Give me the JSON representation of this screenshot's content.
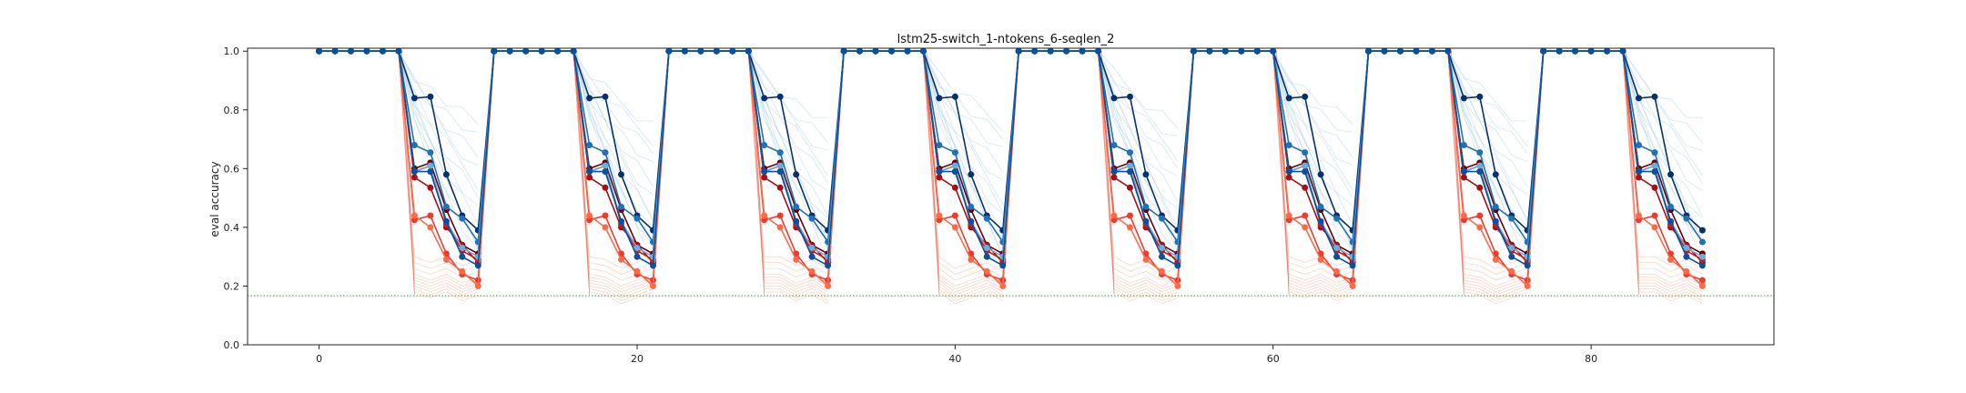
{
  "chart_data": {
    "type": "line",
    "title": "lstm25-switch_1-ntokens_6-seqlen_2",
    "xlabel": "",
    "ylabel": "eval accuracy",
    "xlim": [
      -4.5,
      91.5
    ],
    "ylim": [
      0.0,
      1.01
    ],
    "xticks": [
      0,
      20,
      40,
      60,
      80
    ],
    "yticks": [
      0.0,
      0.2,
      0.4,
      0.6,
      0.8,
      1.0
    ],
    "ytick_labels": [
      "0.0",
      "0.2",
      "0.4",
      "0.6",
      "0.8",
      "1.0"
    ],
    "grid": false,
    "legend": "none",
    "reference_line": {
      "y": 0.167,
      "color": "#2ca02c",
      "style": "dotted"
    },
    "period": 11,
    "flat_segment_x": [
      0,
      1,
      2,
      3,
      4,
      5
    ],
    "drop_segment_x": [
      6,
      7,
      8,
      9,
      10
    ],
    "blue_series": [
      {
        "color": "#08306b",
        "values": [
          0.85,
          0.845,
          0.57,
          0.45,
          0.39
        ]
      },
      {
        "color": "#2171b5",
        "values": [
          0.67,
          0.665,
          0.47,
          0.42,
          0.36
        ]
      },
      {
        "color": "#6baed6",
        "values": [
          0.59,
          0.6,
          0.43,
          0.33,
          0.29
        ]
      },
      {
        "color": "#08519c",
        "values": [
          0.6,
          0.59,
          0.41,
          0.31,
          0.27
        ]
      }
    ],
    "red_series": [
      {
        "color": "#67000d",
        "values": [
          0.61,
          0.62,
          0.45,
          0.35,
          0.31
        ]
      },
      {
        "color": "#a50f15",
        "values": [
          0.56,
          0.545,
          0.4,
          0.33,
          0.29
        ]
      },
      {
        "color": "#cb181d",
        "values": [
          0.59,
          0.6,
          0.42,
          0.32,
          0.28
        ]
      },
      {
        "color": "#ef3b2c",
        "values": [
          0.435,
          0.44,
          0.3,
          0.25,
          0.22
        ]
      },
      {
        "color": "#fb6a4a",
        "values": [
          0.43,
          0.41,
          0.29,
          0.24,
          0.21
        ]
      }
    ],
    "background_traces": {
      "blue_color": "#9ecae1",
      "red_color": "#fc9272",
      "blue_end_values": [
        0.75,
        0.7,
        0.65,
        0.6,
        0.55,
        0.5,
        0.45,
        0.42,
        0.38,
        0.35,
        0.33,
        0.3
      ],
      "red_end_values": [
        0.16,
        0.17,
        0.18,
        0.19,
        0.2,
        0.21,
        0.22,
        0.24,
        0.26,
        0.28
      ]
    }
  }
}
